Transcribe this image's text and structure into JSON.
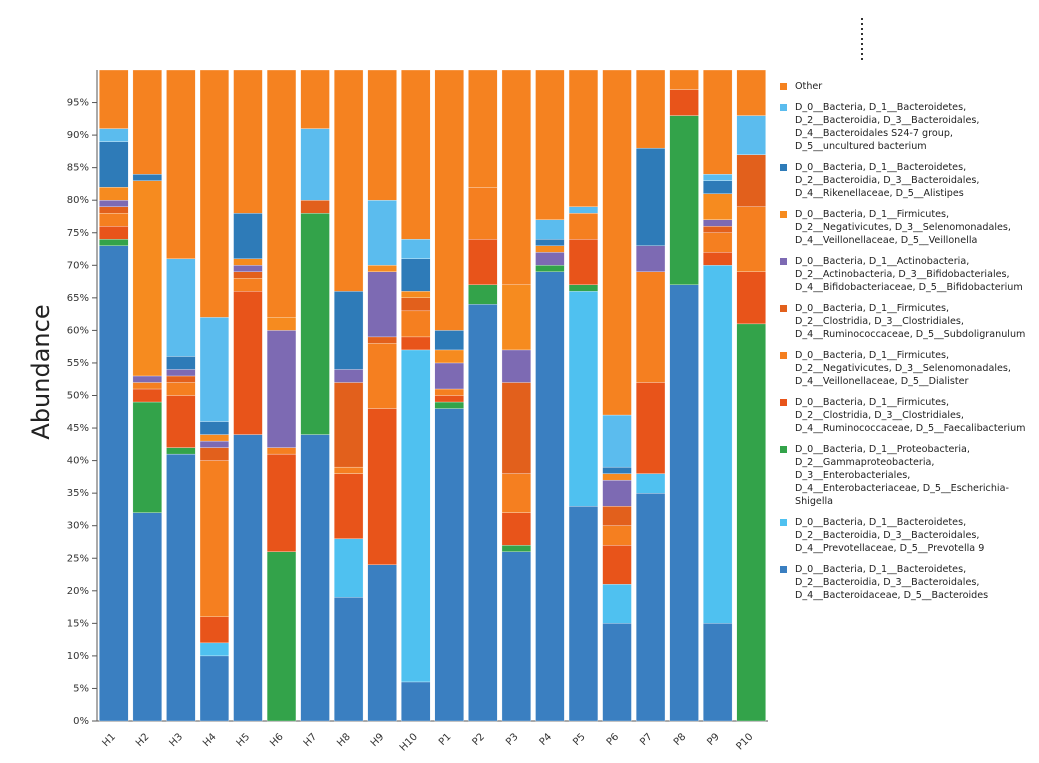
{
  "chart_data": {
    "type": "stacked_bar",
    "y_label": "Abundance",
    "categories": [
      "H1",
      "H2",
      "H3",
      "H4",
      "H5",
      "H6",
      "H7",
      "H8",
      "H9",
      "H10",
      "P1",
      "P2",
      "P3",
      "P4",
      "P5",
      "P6",
      "P7",
      "P8",
      "P9",
      "P10"
    ],
    "ylim": [
      0,
      100
    ],
    "yticks": [
      {
        "value": 0,
        "label": "0%"
      },
      {
        "value": 5,
        "label": "5%"
      },
      {
        "value": 10,
        "label": "10%"
      },
      {
        "value": 15,
        "label": "15%"
      },
      {
        "value": 20,
        "label": "20%"
      },
      {
        "value": 25,
        "label": "25%"
      },
      {
        "value": 30,
        "label": "30%"
      },
      {
        "value": 35,
        "label": "35%"
      },
      {
        "value": 40,
        "label": "40%"
      },
      {
        "value": 45,
        "label": "45%"
      },
      {
        "value": 50,
        "label": "50%"
      },
      {
        "value": 55,
        "label": "55%"
      },
      {
        "value": 60,
        "label": "60%"
      },
      {
        "value": 65,
        "label": "65%"
      },
      {
        "value": 70,
        "label": "70%"
      },
      {
        "value": 75,
        "label": "75%"
      },
      {
        "value": 80,
        "label": "80%"
      },
      {
        "value": 85,
        "label": "85%"
      },
      {
        "value": 90,
        "label": "90%"
      },
      {
        "value": 95,
        "label": "95%"
      }
    ],
    "series": [
      {
        "name": "D_0__Bacteria, D_1__Bacteroidetes, D_2__Bacteroidia, D_3__Bacteroidales, D_4__Bacteroidaceae, D_5__Bacteroides",
        "color": "#3a7fc1",
        "values": [
          73,
          32,
          41,
          10,
          44,
          0,
          44,
          19,
          24,
          6,
          48,
          64,
          26,
          69,
          33,
          15,
          35,
          67,
          15,
          0
        ]
      },
      {
        "name": "D_0__Bacteria, D_1__Bacteroidetes, D_2__Bacteroidia, D_3__Bacteroidales, D_4__Prevotellaceae, D_5__Prevotella 9",
        "color": "#4fc1f0",
        "values": [
          0,
          0,
          0,
          2,
          0,
          0,
          0,
          9,
          0,
          51,
          0,
          0,
          0,
          0,
          33,
          6,
          3,
          0,
          55,
          0
        ]
      },
      {
        "name": "D_0__Bacteria, D_1__Proteobacteria, D_2__Gammaproteobacteria, D_3__Enterobacteriales, D_4__Enterobacteriaceae, D_5__Escherichia-Shigella",
        "color": "#33a34a",
        "values": [
          1,
          17,
          1,
          0,
          0,
          26,
          34,
          0,
          0,
          0,
          1,
          3,
          1,
          1,
          1,
          0,
          0,
          26,
          0,
          61
        ]
      },
      {
        "name": "D_0__Bacteria, D_1__Firmicutes, D_2__Clostridia, D_3__Clostridiales, D_4__Ruminococcaceae, D_5__Faecalibacterium",
        "color": "#e8541a",
        "values": [
          2,
          2,
          8,
          4,
          22,
          15,
          0,
          10,
          24,
          2,
          1,
          7,
          5,
          0,
          7,
          6,
          14,
          4,
          2,
          8
        ]
      },
      {
        "name": "D_0__Bacteria, D_1__Firmicutes, D_2__Negativicutes, D_3__Selenomonadales, D_4__Veillonellaceae, D_5__Dialister",
        "color": "#f57f20",
        "values": [
          2,
          1,
          2,
          24,
          2,
          1,
          0,
          1,
          10,
          4,
          1,
          8,
          6,
          0,
          4,
          3,
          17,
          0,
          3,
          10
        ]
      },
      {
        "name": "D_0__Bacteria, D_1__Firmicutes, D_2__Clostridia, D_3__Clostridiales, D_4__Ruminococcaceae, D_5__Subdoligranulum",
        "color": "#e2601c",
        "values": [
          1,
          0,
          1,
          2,
          1,
          0,
          2,
          13,
          1,
          2,
          0,
          0,
          14,
          0,
          0,
          3,
          0,
          0,
          1,
          8
        ]
      },
      {
        "name": "D_0__Bacteria, D_1__Actinobacteria, D_2__Actinobacteria, D_3__Bifidobacteriales, D_4__Bifidobacteriaceae, D_5__Bifidobacterium",
        "color": "#7d6ab3",
        "values": [
          1,
          1,
          1,
          1,
          1,
          18,
          0,
          2,
          10,
          0,
          4,
          0,
          5,
          2,
          0,
          4,
          4,
          0,
          1,
          0
        ]
      },
      {
        "name": "D_0__Bacteria, D_1__Firmicutes, D_2__Negativicutes, D_3__Selenomonadales, D_4__Veillonellaceae, D_5__Veillonella",
        "color": "#f68b1f",
        "values": [
          2,
          30,
          0,
          1,
          1,
          2,
          0,
          0,
          1,
          1,
          2,
          0,
          10,
          1,
          0,
          1,
          0,
          0,
          4,
          0
        ]
      },
      {
        "name": "D_0__Bacteria, D_1__Bacteroidetes, D_2__Bacteroidia, D_3__Bacteroidales, D_4__Rikenellaceae, D_5__Alistipes",
        "color": "#2e7bb8",
        "values": [
          7,
          1,
          2,
          2,
          7,
          0,
          0,
          12,
          0,
          5,
          3,
          0,
          0,
          1,
          0,
          1,
          15,
          0,
          2,
          0
        ]
      },
      {
        "name": "D_0__Bacteria, D_1__Bacteroidetes, D_2__Bacteroidia, D_3__Bacteroidales, D_4__Bacteroidales S24-7 group, D_5__uncultured bacterium",
        "color": "#5bbcee",
        "values": [
          2,
          0,
          15,
          16,
          0,
          0,
          11,
          0,
          10,
          3,
          0,
          0,
          0,
          3,
          1,
          8,
          0,
          0,
          1,
          6
        ]
      },
      {
        "name": "Other",
        "color": "#f58220",
        "values": [
          9,
          16,
          29,
          38,
          22,
          38,
          9,
          34,
          20,
          26,
          40,
          18,
          33,
          23,
          21,
          53,
          12,
          3,
          16,
          7
        ]
      }
    ]
  }
}
